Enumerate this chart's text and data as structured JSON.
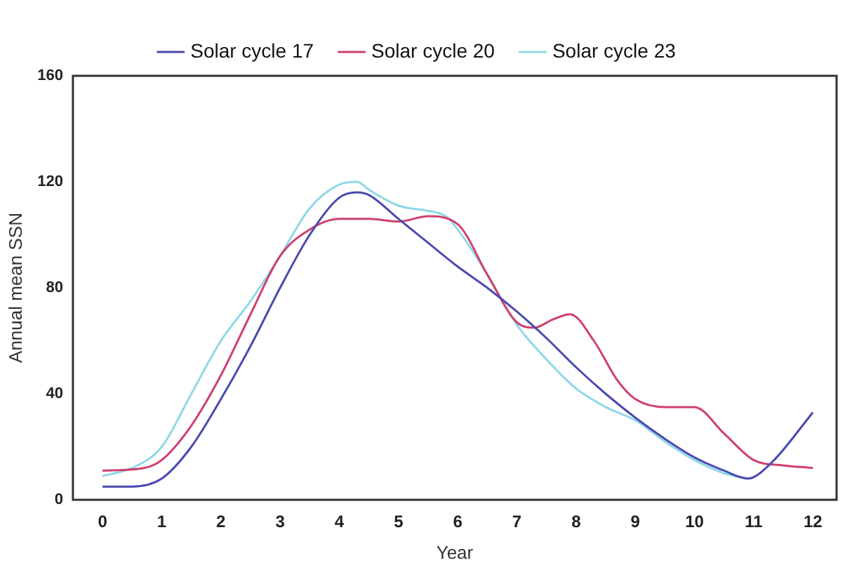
{
  "chart_data": {
    "type": "line",
    "xlabel": "Year",
    "ylabel": "Annual mean SSN",
    "xlim": [
      -0.5,
      12.4
    ],
    "xticks": [
      0,
      1,
      2,
      3,
      4,
      5,
      6,
      7,
      8,
      9,
      10,
      11,
      12
    ],
    "ylim": [
      0,
      160
    ],
    "yticks": [
      0,
      40,
      80,
      120,
      160
    ],
    "grid": false,
    "legend": "top",
    "marker": "none",
    "line_style": "solid",
    "series": [
      {
        "name": "Solar cycle 17",
        "color": "#4a4ab0",
        "x": [
          0,
          0.5,
          1,
          1.5,
          2,
          2.5,
          3,
          3.5,
          4,
          4.3,
          4.5,
          5,
          5.5,
          6,
          6.5,
          7,
          7.5,
          8,
          8.5,
          9,
          9.5,
          10,
          10.5,
          10.9,
          11.3,
          12
        ],
        "values": [
          5,
          5,
          8,
          20,
          38,
          58,
          80,
          100,
          114,
          116,
          115,
          106,
          97,
          88,
          80,
          71,
          61,
          50,
          40,
          31,
          23,
          16,
          11,
          8,
          14,
          33
        ]
      },
      {
        "name": "Solar cycle 20",
        "color": "#d04070",
        "x": [
          0,
          0.7,
          1,
          1.5,
          2,
          2.5,
          3,
          3.5,
          4,
          4.5,
          5,
          5.5,
          6,
          6.5,
          7,
          7.3,
          7.6,
          7.9,
          8.3,
          8.7,
          9,
          9.5,
          10,
          10.5,
          11,
          11.5,
          12
        ],
        "values": [
          11,
          12,
          15,
          28,
          47,
          70,
          92,
          102,
          106,
          106,
          105,
          107,
          104,
          85,
          67,
          65,
          68,
          70,
          60,
          45,
          38,
          35,
          35,
          25,
          15,
          13,
          12
        ]
      },
      {
        "name": "Solar cycle 23",
        "color": "#8ed8e8",
        "x": [
          0,
          0.5,
          1,
          1.5,
          2,
          2.5,
          3,
          3.5,
          4,
          4.3,
          4.5,
          5,
          5.5,
          5.8,
          6,
          6.5,
          7,
          7.5,
          8,
          8.5,
          9,
          9.5,
          10,
          10.5,
          10.9
        ],
        "values": [
          9,
          12,
          20,
          40,
          60,
          75,
          92,
          110,
          119,
          120,
          117,
          111,
          109,
          107,
          102,
          85,
          66,
          53,
          42,
          35,
          30,
          22,
          15,
          10,
          8
        ]
      }
    ]
  }
}
